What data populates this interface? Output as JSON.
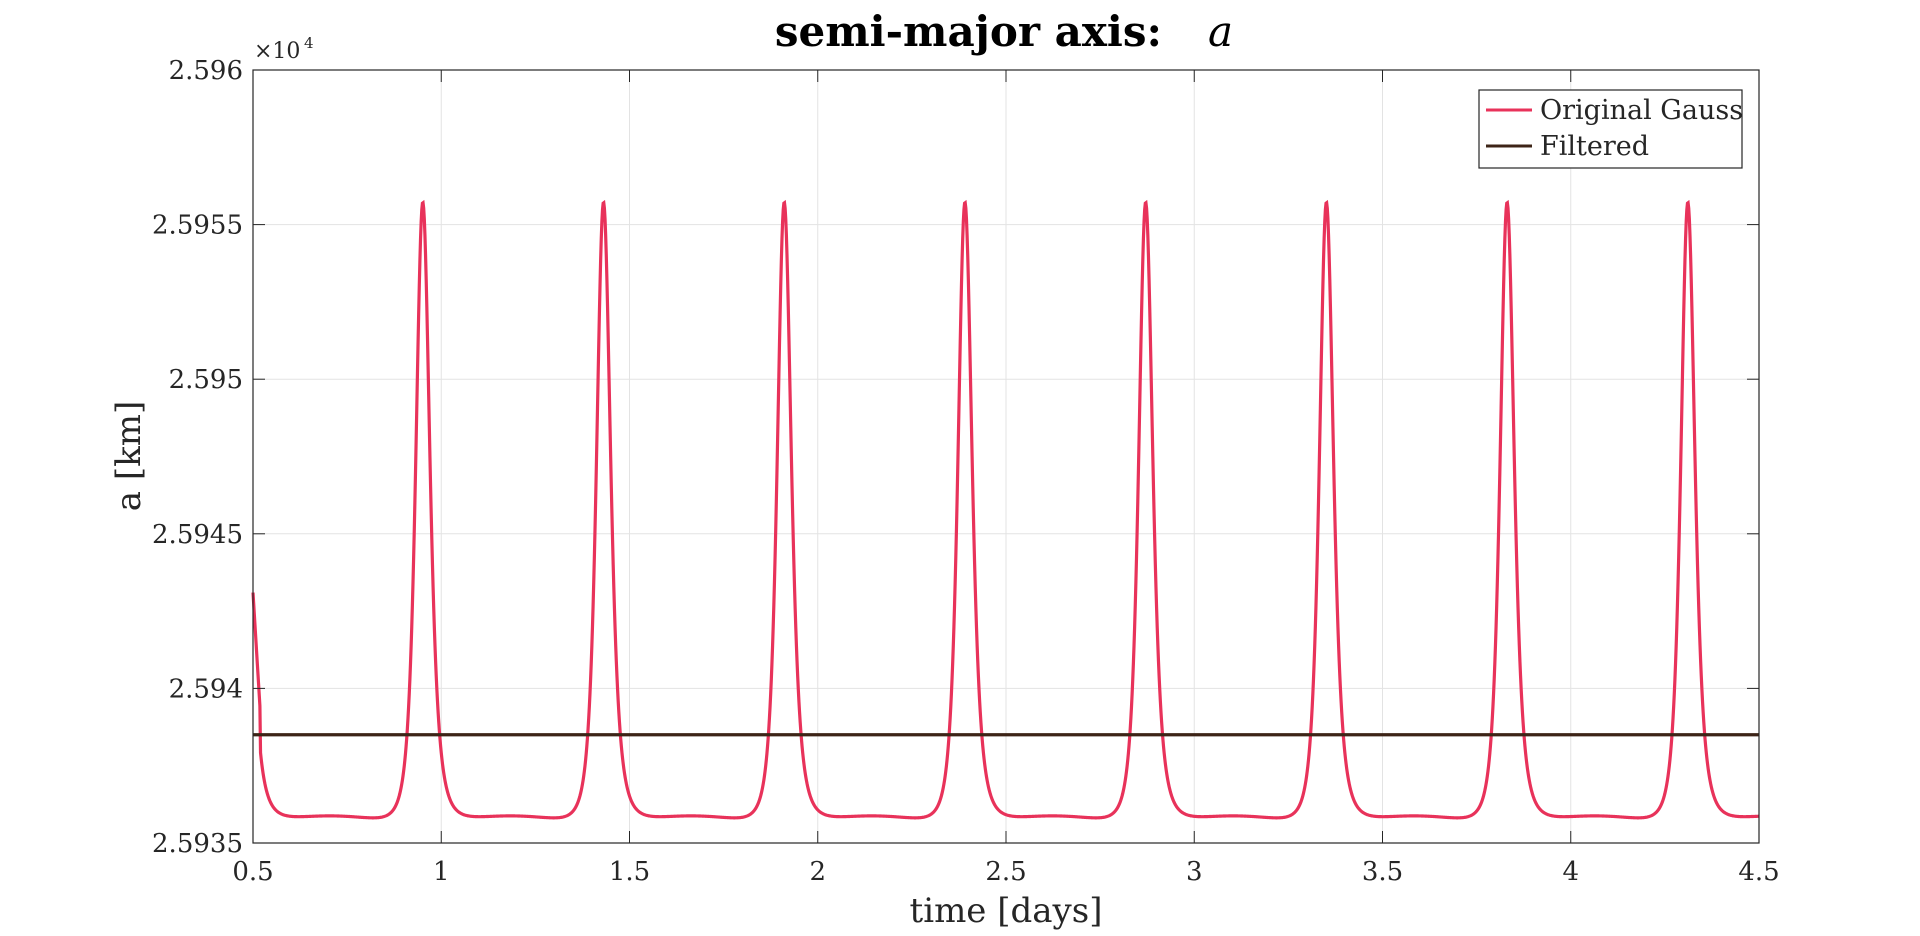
{
  "chart_data": {
    "type": "line",
    "title": "semi-major axis:",
    "title_variable": "a",
    "xlabel": "time [days]",
    "ylabel": "a [km]",
    "xlim": [
      0.5,
      4.5
    ],
    "ylim": [
      25935,
      25960
    ],
    "y_exponent_label": "×10",
    "y_exponent_power": "4",
    "x_ticks": [
      0.5,
      1,
      1.5,
      2,
      2.5,
      3,
      3.5,
      4,
      4.5
    ],
    "x_tick_labels": [
      "0.5",
      "1",
      "1.5",
      "2",
      "2.5",
      "3",
      "3.5",
      "4",
      "4.5"
    ],
    "y_ticks": [
      25935,
      25940,
      25945,
      25950,
      25955,
      25960
    ],
    "y_tick_labels": [
      "2.5935",
      "2.594",
      "2.5945",
      "2.595",
      "2.5955",
      "2.596"
    ],
    "grid": true,
    "legend_position": "top-right",
    "series": [
      {
        "name": "Original Gauss",
        "color": "#e8325a",
        "period_days": 0.48,
        "first_peak_day": 0.95,
        "peak_value": 25956.1,
        "min_value": 25935.6,
        "start_value": 25943.1,
        "end_value": 25936.5
      },
      {
        "name": "Filtered",
        "color": "#3d2417",
        "value": 25938.5
      }
    ]
  }
}
